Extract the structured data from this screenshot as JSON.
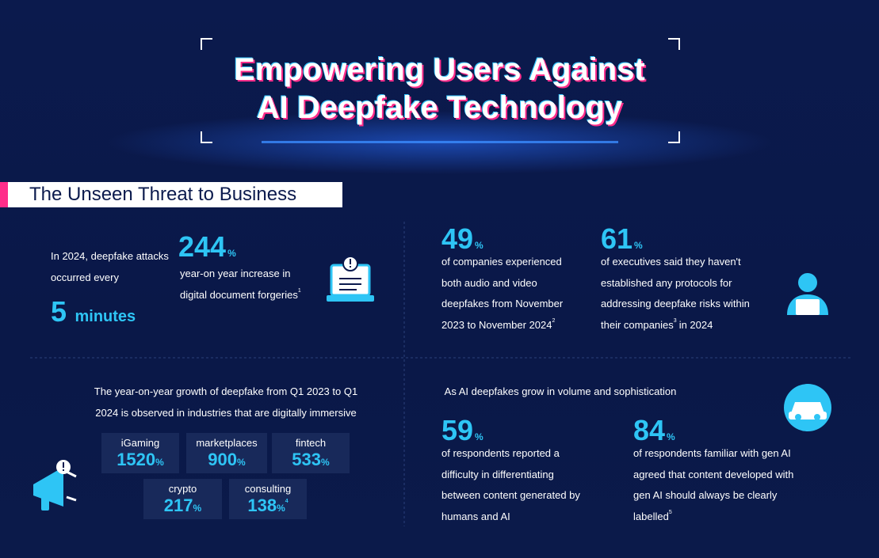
{
  "header": {
    "title_lines": [
      "Empowering Users Against",
      "AI Deepfake Technology"
    ]
  },
  "section": {
    "title": "The Unseen Threat to Business"
  },
  "stats": [
    {
      "intro": "In 2024, deepfake attacks occurred every",
      "value": 5,
      "unit": "minutes"
    },
    {
      "value": 244,
      "unit": "%",
      "text": "year-on year increase in digital document forgeries",
      "note": "1"
    },
    {
      "value": 49,
      "unit": "%",
      "text": "of companies experienced both audio and video deepfakes from November 2023 to November 2024",
      "note": "2"
    },
    {
      "value": 61,
      "unit": "%",
      "text": "of executives said they haven't established any protocols for addressing deepfake risks within their companies",
      "note": "3",
      "text_after": "in 2024"
    }
  ],
  "industries": {
    "intro": "The year-on-year growth of deepfake from Q1 2023 to Q1 2024 is observed in industries that are digitally immersive",
    "items": [
      {
        "name": "iGaming",
        "value": 1520,
        "unit": "%"
      },
      {
        "name": "marketplaces",
        "value": 900,
        "unit": "%"
      },
      {
        "name": "fintech",
        "value": 533,
        "unit": "%"
      },
      {
        "name": "crypto",
        "value": 217,
        "unit": "%"
      },
      {
        "name": "consulting",
        "value": 138,
        "unit": "%",
        "note": "4"
      }
    ]
  },
  "perception": {
    "intro": "As AI deepfakes grow in volume and sophistication",
    "stats": [
      {
        "value": 59,
        "unit": "%",
        "text": "of respondents reported a difficulty in differentiating between content generated by humans and AI"
      },
      {
        "value": 84,
        "unit": "%",
        "text": "of respondents familiar with gen AI agreed that content developed with gen AI should always be clearly labelled",
        "note": "5"
      }
    ]
  }
}
